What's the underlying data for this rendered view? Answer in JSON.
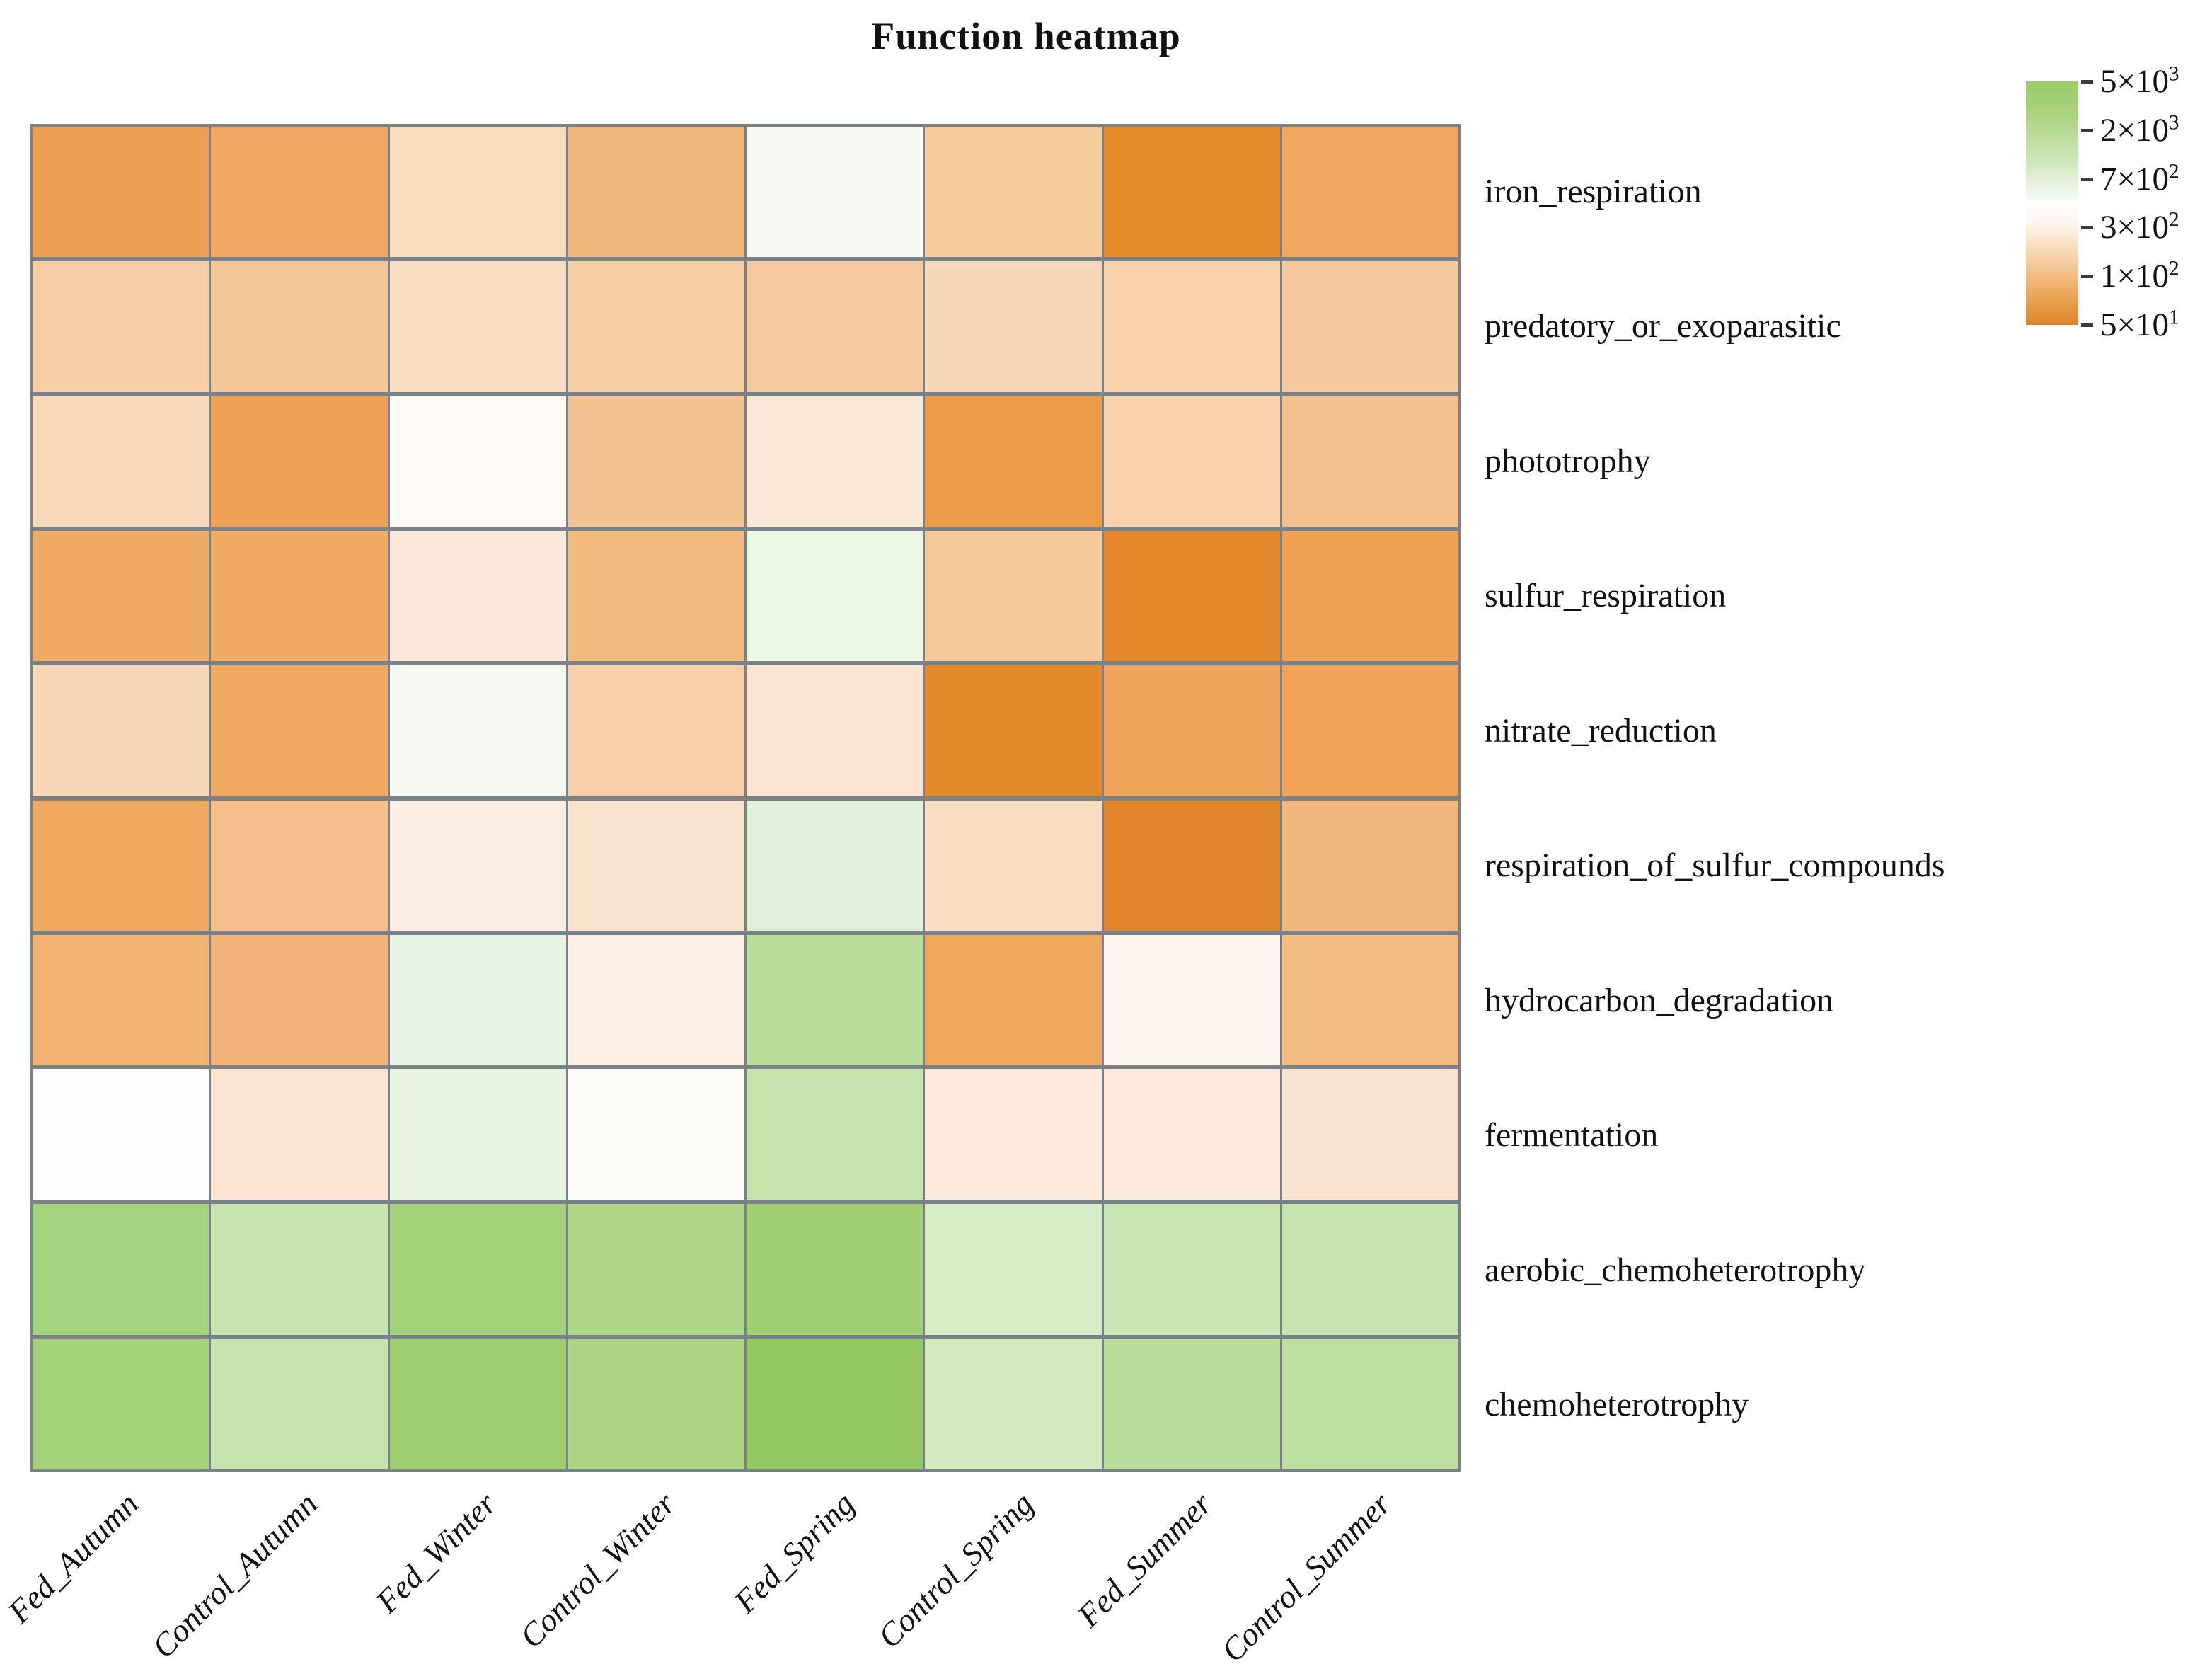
{
  "title": "Function heatmap",
  "chart_data": {
    "type": "heatmap",
    "title": "Function heatmap",
    "columns": [
      "Fed_Autumn",
      "Control_Autumn",
      "Fed_Winter",
      "Control_Winter",
      "Fed_Spring",
      "Control_Spring",
      "Fed_Summer",
      "Control_Summer"
    ],
    "rows": [
      "iron_respiration",
      "predatory_or_exoparasitic",
      "phototrophy",
      "sulfur_respiration",
      "nitrate_reduction",
      "respiration_of_sulfur_compounds",
      "hydrocarbon_degradation",
      "fermentation",
      "aerobic_chemoheterotrophy",
      "chemoheterotrophy"
    ],
    "values_note": "abundance values estimated from the log color scale (50 - 5000)",
    "values": [
      [
        80,
        95,
        250,
        125,
        550,
        180,
        52,
        92
      ],
      [
        195,
        165,
        255,
        190,
        180,
        230,
        210,
        178
      ],
      [
        245,
        81,
        455,
        158,
        330,
        71,
        205,
        144
      ],
      [
        100,
        100,
        325,
        130,
        600,
        173,
        51,
        83
      ],
      [
        240,
        98,
        540,
        198,
        310,
        53,
        87,
        85
      ],
      [
        95,
        140,
        380,
        290,
        650,
        257,
        51,
        125
      ],
      [
        115,
        118,
        620,
        380,
        2400,
        91,
        430,
        134
      ],
      [
        490,
        300,
        810,
        480,
        1800,
        337,
        330,
        290
      ],
      [
        3600,
        1700,
        3600,
        3000,
        4200,
        1200,
        1600,
        1650
      ],
      [
        3650,
        1650,
        4450,
        3150,
        5200,
        1300,
        2700,
        2550
      ]
    ],
    "cell_colors": [
      [
        "#ED9F54",
        "#EFA964",
        "#F8DCBE",
        "#F2B67C",
        "#F7FAF2",
        "#F6CB9C",
        "#E68C2B",
        "#EFA75F"
      ],
      [
        "#F6CFA6",
        "#F4C697",
        "#F9DDC2",
        "#F6CEA4",
        "#F5CA9E",
        "#F8D7B4",
        "#F7D2AB",
        "#F5C99C"
      ],
      [
        "#F8D9BB",
        "#EFA255",
        "#FEF9F4",
        "#F4C392",
        "#FBE9D8",
        "#EC9C49",
        "#F7D2AC",
        "#F4C08C"
      ],
      [
        "#F0AC66",
        "#F0AB64",
        "#FBE8DA",
        "#F3BA80",
        "#EDF7E6",
        "#F6C999",
        "#E5872B",
        "#EFA254"
      ],
      [
        "#F8D7B8",
        "#F0AB62",
        "#F5F9F1",
        "#F7CFA8",
        "#FBE5D2",
        "#E5892D",
        "#EFA45B",
        "#EFA459"
      ],
      [
        "#F0AA60",
        "#F4BF8A",
        "#FCEEE3",
        "#FAE3CE",
        "#E2F2DA",
        "#F9DDC3",
        "#E3862B",
        "#F2B77E"
      ],
      [
        "#F1B273",
        "#F2B476",
        "#E9F5E4",
        "#FCEFE3",
        "#B8DE9A",
        "#EFA75D",
        "#FDF6EF",
        "#F3BC84"
      ],
      [
        "#FEFDFC",
        "#FAE3D0",
        "#E7F3DF",
        "#FDFBF7",
        "#C4E4AC",
        "#FBEADB",
        "#FBE9D9",
        "#FAE3CE"
      ],
      [
        "#A6D37E",
        "#C7E5B1",
        "#A4D27B",
        "#AED687",
        "#A0D072",
        "#D6ECC5",
        "#C8E6B2",
        "#C5E4AE"
      ],
      [
        "#A4D27A",
        "#C5E4AF",
        "#9CCE6E",
        "#ABD481",
        "#94C962",
        "#D2EABF",
        "#B9DD9B",
        "#BCDFA0"
      ]
    ],
    "grid_line_color": "#7b8189",
    "legend": {
      "position": "top-right",
      "scale_type": "log",
      "high_color": "#9bcb67",
      "mid_color": "#ffffff",
      "low_color": "#de8428",
      "ticks": [
        {
          "mantissa": "5×10",
          "exponent": "3",
          "value": 5000
        },
        {
          "mantissa": "2×10",
          "exponent": "3",
          "value": 2000
        },
        {
          "mantissa": "7×10",
          "exponent": "2",
          "value": 700
        },
        {
          "mantissa": "3×10",
          "exponent": "2",
          "value": 300
        },
        {
          "mantissa": "1×10",
          "exponent": "2",
          "value": 100
        },
        {
          "mantissa": "5×10",
          "exponent": "1",
          "value": 50
        }
      ]
    }
  }
}
